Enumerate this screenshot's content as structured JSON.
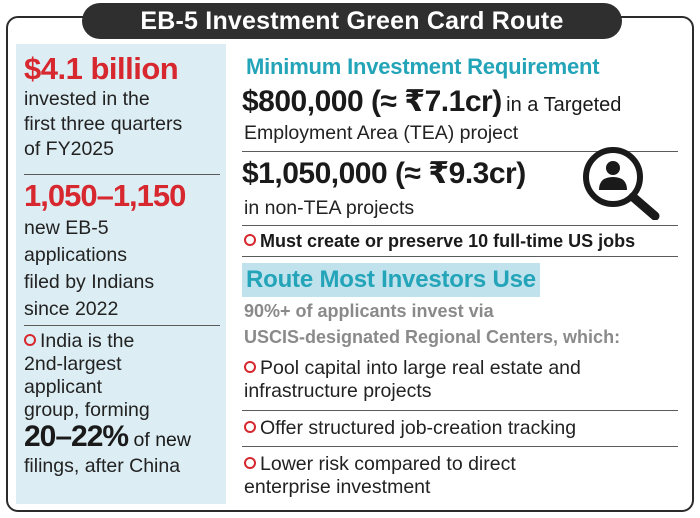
{
  "title": "EB-5 Investment Green Card Route",
  "left": {
    "stat1_value": "$4.1 billion",
    "stat1_lines": [
      "invested in the",
      "first three quarters",
      "of FY2025"
    ],
    "stat2_value": "1,050–1,150",
    "stat2_lines": [
      "new EB-5",
      "applications",
      "filed by Indians",
      "since 2022"
    ],
    "bullet_lines": [
      "India is the",
      "2nd-largest",
      "applicant",
      "group, forming"
    ],
    "pct_value": "20–22%",
    "pct_suffix": "of new",
    "pct_last": "filings, after China"
  },
  "right": {
    "requirement_heading": "Minimum Investment Requirement",
    "tea_amount": "$800,000 (≈ ₹7.1cr)",
    "tea_suffix": "in a Targeted",
    "tea_line2": "Employment Area (TEA) project",
    "non_tea_amount": "$1,050,000 (≈ ₹9.3cr)",
    "non_tea_line": "in non-TEA projects",
    "jobs_requirement": "Must create or preserve 10 full-time US jobs",
    "route_heading": "Route Most Investors Use",
    "route_sub_lines": [
      "90%+ of applicants invest via",
      "USCIS-designated Regional Centers, which:"
    ],
    "bullet1_lines": [
      "Pool capital into large real estate and",
      "infrastructure projects"
    ],
    "bullet2": "Offer structured job-creation tracking",
    "bullet3_lines": [
      "Lower risk compared to direct",
      "enterprise investment"
    ]
  },
  "colors": {
    "accent_red": "#d7282f",
    "accent_teal": "#24a4b8",
    "left_panel_bg": "#dcedf3",
    "title_bg": "#2f2f2f"
  },
  "icons": [
    "investor-search-icon",
    "bullet-circle-icon"
  ]
}
